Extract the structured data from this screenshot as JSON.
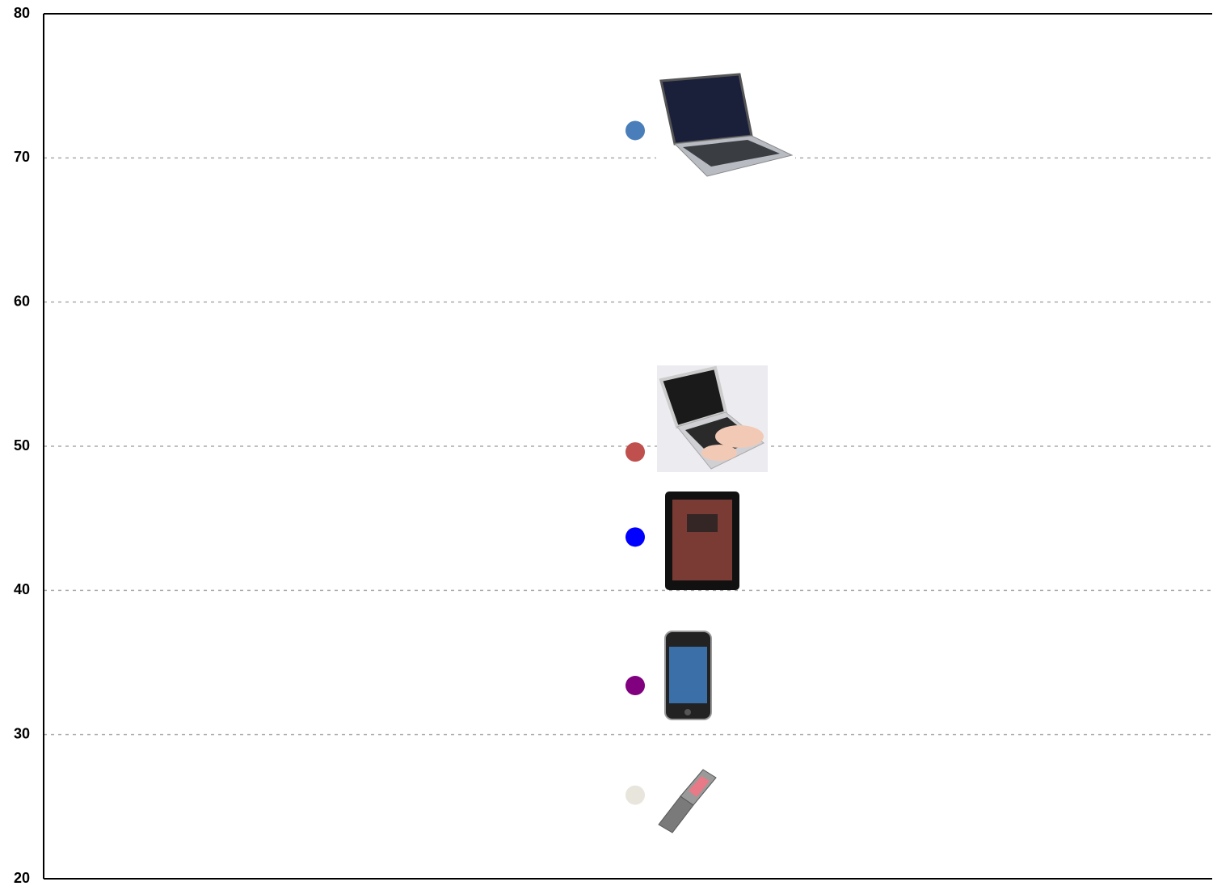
{
  "chart_data": {
    "type": "scatter",
    "values": [
      71.9,
      49.6,
      43.7,
      33.4,
      25.8
    ],
    "colors": [
      "#4a7ebb",
      "#c0504d",
      "#0000ff",
      "#800080",
      "#e8e6dc"
    ],
    "ylim": [
      20,
      80
    ],
    "yticks": [
      20,
      30,
      40,
      50,
      60,
      70,
      80
    ],
    "grid": true
  }
}
